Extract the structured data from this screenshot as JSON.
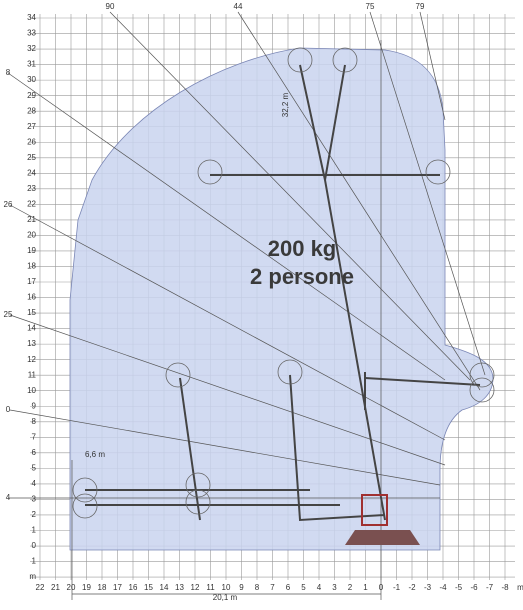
{
  "diagram": {
    "load_text": "200 kg",
    "persons_text": "2 persone",
    "y_labels": [
      "34",
      "33",
      "32",
      "31",
      "30",
      "29",
      "28",
      "27",
      "26",
      "25",
      "24",
      "23",
      "22",
      "21",
      "20",
      "19",
      "18",
      "17",
      "16",
      "15",
      "14",
      "13",
      "12",
      "11",
      "10",
      "9",
      "8",
      "7",
      "6",
      "5",
      "4",
      "3",
      "2",
      "1",
      "0",
      "1",
      "m"
    ],
    "x_labels": [
      "22",
      "21",
      "20",
      "19",
      "18",
      "17",
      "16",
      "15",
      "14",
      "13",
      "12",
      "11",
      "10",
      "9",
      "8",
      "7",
      "6",
      "5",
      "4",
      "3",
      "2",
      "1",
      "0",
      "-1",
      "-2",
      "-3",
      "-4",
      "-5",
      "-6",
      "-7",
      "-8",
      "m"
    ],
    "top_labels": [
      "90",
      "44",
      "75",
      "79"
    ],
    "left_labels": [
      "8",
      "26",
      "25",
      "0",
      "4"
    ],
    "dimension_height": "32,2 m",
    "dimension_offset": "6,6 m",
    "dimension_reach": "20,1 m"
  }
}
